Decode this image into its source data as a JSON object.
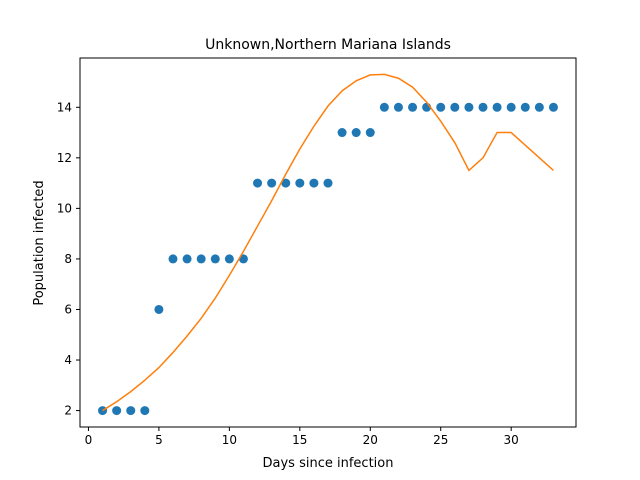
{
  "chart_data": {
    "type": "scatter",
    "title": "Unknown,Northern Mariana Islands",
    "xlabel": "Days since infection",
    "ylabel": "Population infected",
    "xlim": [
      -0.6,
      34.6
    ],
    "ylim": [
      1.35,
      15.95
    ],
    "xticks": [
      0,
      5,
      10,
      15,
      20,
      25,
      30
    ],
    "yticks": [
      2,
      4,
      6,
      8,
      10,
      12,
      14
    ],
    "grid": false,
    "series": [
      {
        "kind": "scatter",
        "color": "#1f77b4",
        "x": [
          1,
          2,
          3,
          4,
          5,
          6,
          7,
          8,
          9,
          10,
          11,
          12,
          13,
          14,
          15,
          16,
          17,
          18,
          19,
          20,
          21,
          22,
          23,
          24,
          25,
          26,
          27,
          28,
          29,
          30,
          31,
          32,
          33
        ],
        "y": [
          2,
          2,
          2,
          2,
          6,
          8,
          8,
          8,
          8,
          8,
          8,
          11,
          11,
          11,
          11,
          11,
          11,
          13,
          13,
          13,
          14,
          14,
          14,
          14,
          14,
          14,
          14,
          14,
          14,
          14,
          14,
          14,
          14
        ]
      },
      {
        "kind": "line",
        "color": "#ff7f0e",
        "x": [
          1,
          2,
          3,
          4,
          5,
          6,
          7,
          8,
          9,
          10,
          11,
          12,
          13,
          14,
          15,
          16,
          17,
          18,
          19,
          20,
          21,
          22,
          23,
          24,
          25,
          26,
          27,
          28,
          29,
          30,
          31,
          32,
          33
        ],
        "y": [
          2.0,
          2.35,
          2.75,
          3.2,
          3.7,
          4.3,
          4.95,
          5.65,
          6.45,
          7.35,
          8.3,
          9.3,
          10.3,
          11.35,
          12.35,
          13.25,
          14.05,
          14.65,
          15.05,
          15.28,
          15.3,
          15.15,
          14.8,
          14.2,
          13.45,
          12.6,
          11.5,
          12.0,
          13.0,
          13.0,
          12.5,
          12.0,
          11.5
        ]
      }
    ]
  }
}
